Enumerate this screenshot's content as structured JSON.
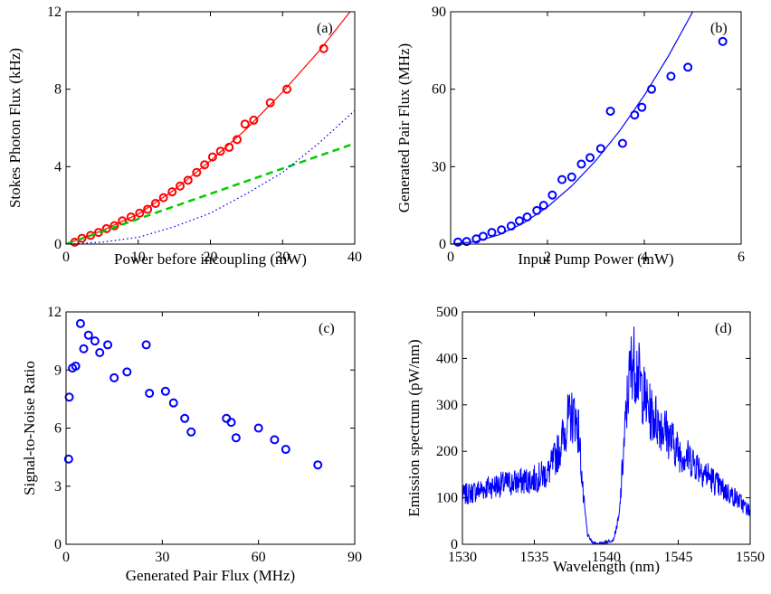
{
  "chart_data": [
    {
      "id": "a",
      "type": "line",
      "panel_label": "(a)",
      "xlabel": "Power before incoupling (mW)",
      "ylabel": "Stokes Photon Flux (kHz)",
      "xlim": [
        0,
        40
      ],
      "ylim": [
        0,
        12
      ],
      "xticks": [
        0,
        10,
        20,
        30,
        40
      ],
      "yticks": [
        0,
        4,
        8,
        12
      ],
      "series": [
        {
          "kind": "markers",
          "color": "#ff0000",
          "x": [
            1.2,
            2.2,
            3.4,
            4.5,
            5.6,
            6.7,
            7.8,
            9.0,
            10.2,
            11.3,
            12.4,
            13.5,
            14.7,
            15.8,
            16.9,
            18.1,
            19.2,
            20.3,
            21.4,
            22.6,
            23.7,
            24.8,
            26.0,
            28.3,
            30.6,
            35.7
          ],
          "y": [
            0.1,
            0.3,
            0.45,
            0.6,
            0.8,
            0.95,
            1.2,
            1.4,
            1.6,
            1.8,
            2.1,
            2.4,
            2.7,
            3.0,
            3.3,
            3.7,
            4.1,
            4.5,
            4.8,
            5.0,
            5.4,
            6.2,
            6.4,
            7.3,
            8.0,
            10.1
          ]
        },
        {
          "kind": "fit",
          "style": "solid",
          "color": "#ff0000",
          "x": [
            0,
            5,
            10,
            15,
            20,
            25,
            30,
            35,
            40
          ],
          "y": [
            0,
            0.7,
            1.55,
            2.8,
            4.3,
            5.95,
            7.85,
            9.95,
            12.3
          ]
        },
        {
          "kind": "component",
          "style": "dashed",
          "color": "#00cc00",
          "x": [
            0,
            40
          ],
          "y": [
            0,
            5.2
          ]
        },
        {
          "kind": "component",
          "style": "dotted",
          "color": "#0000ff",
          "x": [
            0,
            5,
            10,
            15,
            20,
            25,
            30,
            35,
            40
          ],
          "y": [
            0,
            0.1,
            0.35,
            0.9,
            1.6,
            2.6,
            3.7,
            5.2,
            6.9
          ]
        }
      ]
    },
    {
      "id": "b",
      "type": "scatter",
      "panel_label": "(b)",
      "xlabel": "Input Pump Power (mW)",
      "ylabel": "Generated Pair Flux (MHz)",
      "xlim": [
        0,
        6
      ],
      "ylim": [
        0,
        90
      ],
      "xticks": [
        0,
        2,
        4,
        6
      ],
      "yticks": [
        0,
        30,
        60,
        90
      ],
      "series": [
        {
          "kind": "markers",
          "color": "#0000ff",
          "x": [
            0.15,
            0.33,
            0.53,
            0.67,
            0.85,
            1.05,
            1.25,
            1.42,
            1.58,
            1.78,
            1.92,
            2.1,
            2.3,
            2.5,
            2.7,
            2.88,
            3.1,
            3.3,
            3.55,
            3.8,
            3.95,
            4.15,
            4.55,
            4.9,
            5.62
          ],
          "y": [
            0.8,
            1.0,
            2.0,
            3.0,
            4.5,
            5.5,
            7.0,
            9.0,
            10.5,
            13.0,
            15.0,
            19.0,
            25.0,
            26.0,
            31.0,
            33.5,
            37.0,
            51.5,
            39.0,
            50.0,
            53.0,
            60.0,
            65.0,
            68.5,
            78.5
          ]
        },
        {
          "kind": "fit",
          "style": "solid",
          "color": "#0000ff",
          "x": [
            0,
            0.5,
            1,
            1.5,
            2,
            2.5,
            3,
            3.5,
            4,
            4.5,
            5,
            5.25
          ],
          "y": [
            0,
            0.9,
            3.6,
            8.1,
            14.4,
            22.5,
            32.4,
            44.1,
            57.6,
            72.9,
            90.0,
            99.2
          ]
        }
      ]
    },
    {
      "id": "c",
      "type": "scatter",
      "panel_label": "(c)",
      "xlabel": "Generated Pair Flux (MHz)",
      "ylabel": "Signal-to-Noise Ratio",
      "xlim": [
        0,
        90
      ],
      "ylim": [
        0,
        12
      ],
      "xticks": [
        0,
        30,
        60,
        90
      ],
      "yticks": [
        0,
        3,
        6,
        9,
        12
      ],
      "series": [
        {
          "kind": "markers",
          "color": "#0000ff",
          "x": [
            0.8,
            1.0,
            2.0,
            3.0,
            4.5,
            5.5,
            7.0,
            9.0,
            10.5,
            13.0,
            15.0,
            19.0,
            25.0,
            26.0,
            31.0,
            33.5,
            37.0,
            39.0,
            50.0,
            51.5,
            53.0,
            60.0,
            65.0,
            68.5,
            78.5
          ],
          "y": [
            4.4,
            7.6,
            9.1,
            9.2,
            11.4,
            10.1,
            10.8,
            10.5,
            9.9,
            10.3,
            8.6,
            8.9,
            10.3,
            7.8,
            7.9,
            7.3,
            6.5,
            5.8,
            6.5,
            6.3,
            5.5,
            6.0,
            5.4,
            4.9,
            4.1
          ]
        }
      ]
    },
    {
      "id": "d",
      "type": "line",
      "panel_label": "(d)",
      "xlabel": "Wavelength (nm)",
      "ylabel": "Emission spectrum (pW/nm)",
      "xlim": [
        1530,
        1550
      ],
      "ylim": [
        0,
        500
      ],
      "xticks": [
        1530,
        1535,
        1540,
        1545,
        1550
      ],
      "yticks": [
        0,
        100,
        200,
        300,
        400,
        500
      ],
      "series": [
        {
          "kind": "spectrum",
          "color": "#0000ff",
          "x": [
            1530,
            1531,
            1532,
            1533,
            1534,
            1535,
            1536,
            1536.8,
            1537.3,
            1537.8,
            1538.1,
            1538.4,
            1538.7,
            1539,
            1539.5,
            1540,
            1540.5,
            1540.9,
            1541.2,
            1541.5,
            1541.8,
            1542.1,
            1542.5,
            1543,
            1544,
            1545,
            1546,
            1547,
            1548,
            1549,
            1550
          ],
          "y": [
            105,
            115,
            125,
            130,
            135,
            140,
            155,
            210,
            265,
            280,
            240,
            100,
            20,
            5,
            0,
            5,
            10,
            60,
            200,
            330,
            400,
            380,
            330,
            285,
            250,
            200,
            180,
            150,
            120,
            100,
            70
          ]
        }
      ]
    }
  ]
}
